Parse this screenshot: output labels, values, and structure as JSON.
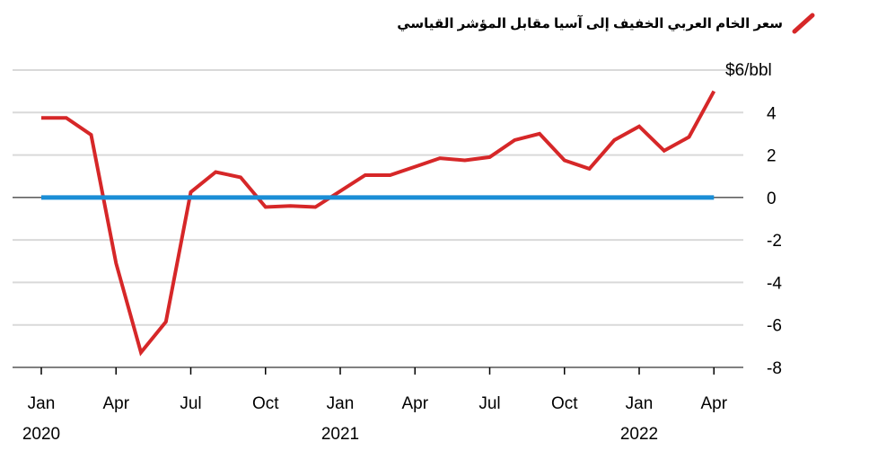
{
  "chart_data": {
    "type": "line",
    "legend": [
      {
        "label": "سعر الخام العربي الخفيف إلى آسيا مقابل المؤشر القياسي",
        "color": "#d62728"
      }
    ],
    "y_unit_label": "$6/bbl",
    "ylim": [
      -8,
      6
    ],
    "y_ticks": [
      4,
      2,
      0,
      -2,
      -4,
      -6,
      -8
    ],
    "y_tick_labels": [
      "4",
      "2",
      "0",
      "-2",
      "-4",
      "-6",
      "-8"
    ],
    "x_tick_labels": [
      {
        "month": "Jan",
        "year": "2020"
      },
      {
        "month": "Apr",
        "year": ""
      },
      {
        "month": "Jul",
        "year": ""
      },
      {
        "month": "Oct",
        "year": ""
      },
      {
        "month": "Jan",
        "year": "2021"
      },
      {
        "month": "Apr",
        "year": ""
      },
      {
        "month": "Jul",
        "year": ""
      },
      {
        "month": "Oct",
        "year": ""
      },
      {
        "month": "Jan",
        "year": "2022"
      },
      {
        "month": "Apr",
        "year": ""
      }
    ],
    "x": [
      "2020-01",
      "2020-02",
      "2020-03",
      "2020-04",
      "2020-05",
      "2020-06",
      "2020-07",
      "2020-08",
      "2020-09",
      "2020-10",
      "2020-11",
      "2020-12",
      "2021-01",
      "2021-02",
      "2021-03",
      "2021-04",
      "2021-05",
      "2021-06",
      "2021-07",
      "2021-08",
      "2021-09",
      "2021-10",
      "2021-11",
      "2021-12",
      "2022-01",
      "2022-02",
      "2022-03",
      "2022-04"
    ],
    "series": [
      {
        "color": "#d62728",
        "values": [
          3.75,
          3.75,
          2.95,
          -3.1,
          -7.3,
          -5.85,
          0.25,
          1.2,
          0.95,
          -0.45,
          -0.4,
          -0.45,
          0.3,
          1.05,
          1.05,
          1.45,
          1.85,
          1.75,
          1.9,
          2.7,
          3.0,
          1.75,
          1.35,
          2.7,
          3.35,
          2.2,
          2.85,
          5.0
        ]
      },
      {
        "color": "#1a8ed6",
        "values": [
          0,
          0,
          0,
          0,
          0,
          0,
          0,
          0,
          0,
          0,
          0,
          0,
          0,
          0,
          0,
          0,
          0,
          0,
          0,
          0,
          0,
          0,
          0,
          0,
          0,
          0,
          0,
          0
        ]
      }
    ],
    "grid": "horizontal"
  }
}
